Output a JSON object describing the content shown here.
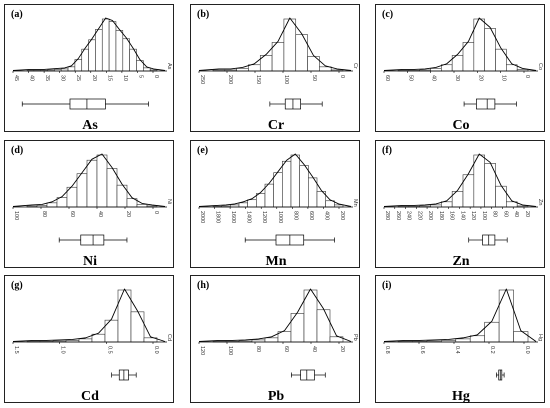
{
  "chart_data": [
    {
      "type": "histogram",
      "panel_label": "(a)",
      "element": "As",
      "axis_unit": "As",
      "ticks": [
        "45",
        "40",
        "35",
        "30",
        "25",
        "20",
        "15",
        "10",
        "5",
        "0"
      ],
      "bar_heights": [
        0.01,
        0.01,
        0.01,
        0.02,
        0.03,
        0.04,
        0.08,
        0.22,
        0.42,
        0.6,
        0.8,
        1.0,
        0.95,
        0.78,
        0.62,
        0.42,
        0.2,
        0.06,
        0.02
      ],
      "box": {
        "whisker_low": 0.06,
        "q1": 0.37,
        "median": 0.48,
        "q3": 0.6,
        "whisker_high": 0.88
      }
    },
    {
      "type": "histogram",
      "panel_label": "(b)",
      "element": "Cr",
      "axis_unit": "Cr",
      "ticks": [
        "250",
        "200",
        "150",
        "100",
        "50",
        "0"
      ],
      "bar_heights": [
        0.02,
        0.02,
        0.05,
        0.12,
        0.3,
        0.55,
        1.0,
        0.7,
        0.28,
        0.08,
        0.02
      ],
      "box": {
        "whisker_low": 0.46,
        "q1": 0.56,
        "median": 0.61,
        "q3": 0.66,
        "whisker_high": 0.8
      }
    },
    {
      "type": "histogram",
      "panel_label": "(c)",
      "element": "Co",
      "axis_unit": "Co",
      "ticks": [
        "60",
        "50",
        "40",
        "30",
        "20",
        "10",
        "0"
      ],
      "bar_heights": [
        0.01,
        0.01,
        0.02,
        0.05,
        0.12,
        0.3,
        0.55,
        1.0,
        0.82,
        0.42,
        0.12,
        0.03
      ],
      "box": {
        "whisker_low": 0.52,
        "q1": 0.6,
        "median": 0.67,
        "q3": 0.72,
        "whisker_high": 0.86
      }
    },
    {
      "type": "histogram",
      "panel_label": "(d)",
      "element": "Ni",
      "axis_unit": "Ni",
      "ticks": [
        "100",
        "80",
        "60",
        "40",
        "20",
        "0"
      ],
      "bar_heights": [
        0.02,
        0.03,
        0.08,
        0.18,
        0.38,
        0.64,
        0.9,
        1.0,
        0.74,
        0.42,
        0.16,
        0.05,
        0.02
      ],
      "box": {
        "whisker_low": 0.3,
        "q1": 0.44,
        "median": 0.52,
        "q3": 0.59,
        "whisker_high": 0.74
      }
    },
    {
      "type": "histogram",
      "panel_label": "(e)",
      "element": "Mn",
      "axis_unit": "Mn",
      "ticks": [
        "2000",
        "1800",
        "1600",
        "1400",
        "1200",
        "1000",
        "800",
        "600",
        "400",
        "200"
      ],
      "bar_heights": [
        0.01,
        0.02,
        0.04,
        0.08,
        0.14,
        0.26,
        0.44,
        0.66,
        0.88,
        1.0,
        0.8,
        0.56,
        0.3,
        0.12,
        0.04
      ],
      "box": {
        "whisker_low": 0.3,
        "q1": 0.5,
        "median": 0.59,
        "q3": 0.68,
        "whisker_high": 0.88
      }
    },
    {
      "type": "histogram",
      "panel_label": "(f)",
      "element": "Zn",
      "axis_unit": "Zn",
      "ticks": [
        "280",
        "260",
        "240",
        "220",
        "200",
        "180",
        "160",
        "140",
        "120",
        "100",
        "80",
        "60",
        "40",
        "20"
      ],
      "bar_heights": [
        0.01,
        0.01,
        0.02,
        0.04,
        0.1,
        0.3,
        0.62,
        1.0,
        0.84,
        0.4,
        0.1,
        0.02
      ],
      "box": {
        "whisker_low": 0.55,
        "q1": 0.64,
        "median": 0.68,
        "q3": 0.72,
        "whisker_high": 0.8
      }
    },
    {
      "type": "histogram",
      "panel_label": "(g)",
      "element": "Cd",
      "axis_unit": "Cd",
      "ticks": [
        "1.5",
        "1.0",
        "0.5",
        "0.0"
      ],
      "bar_heights": [
        0.01,
        0.01,
        0.02,
        0.03,
        0.06,
        0.15,
        0.42,
        1.0,
        0.58,
        0.08
      ],
      "box": {
        "whisker_low": 0.64,
        "q1": 0.69,
        "median": 0.72,
        "q3": 0.75,
        "whisker_high": 0.8
      }
    },
    {
      "type": "histogram",
      "panel_label": "(h)",
      "element": "Pb",
      "axis_unit": "Pb",
      "ticks": [
        "120",
        "100",
        "80",
        "60",
        "40",
        "20"
      ],
      "bar_heights": [
        0.01,
        0.01,
        0.02,
        0.04,
        0.08,
        0.2,
        0.55,
        1.0,
        0.62,
        0.1
      ],
      "box": {
        "whisker_low": 0.6,
        "q1": 0.66,
        "median": 0.7,
        "q3": 0.75,
        "whisker_high": 0.82
      }
    },
    {
      "type": "histogram",
      "panel_label": "(i)",
      "element": "Hg",
      "axis_unit": "Hg",
      "ticks": [
        "0.8",
        "0.6",
        "0.4",
        "0.2",
        "0.0"
      ],
      "bar_heights": [
        0.01,
        0.01,
        0.02,
        0.03,
        0.06,
        0.12,
        0.38,
        1.0,
        0.2
      ],
      "box": {
        "whisker_low": 0.73,
        "q1": 0.745,
        "median": 0.755,
        "q3": 0.765,
        "whisker_high": 0.78
      }
    }
  ]
}
